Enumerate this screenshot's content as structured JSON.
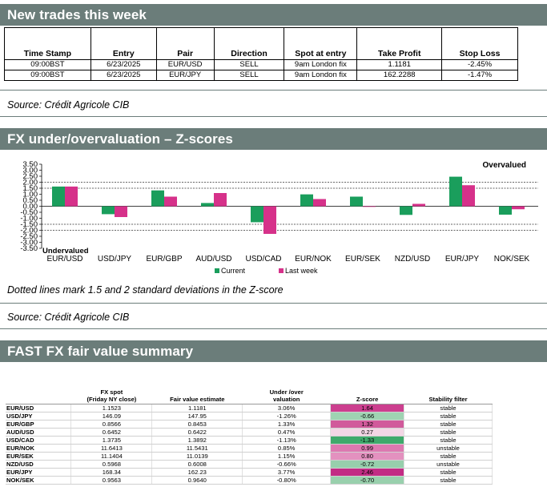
{
  "trades": {
    "title": "New trades this week",
    "columns": [
      "Time Stamp",
      "Entry",
      "Pair",
      "Direction",
      "Spot at entry",
      "Take Profit",
      "Stop Loss"
    ],
    "rows": [
      [
        "09:00BST",
        "6/23/2025",
        "EUR/USD",
        "SELL",
        "9am London fix",
        "1.1181",
        "-2.45%"
      ],
      [
        "09:00BST",
        "6/23/2025",
        "EUR/JPY",
        "SELL",
        "9am London fix",
        "162.2288",
        "-1.47%"
      ]
    ],
    "source": "Source: Crédit Agricole CIB"
  },
  "zscores": {
    "title": "FX under/overvaluation – Z-scores",
    "note": "Dotted lines mark 1.5 and 2 standard deviations in the Z-score",
    "source": "Source: Crédit Agricole CIB"
  },
  "chart_data": {
    "type": "bar",
    "categories": [
      "EUR/USD",
      "USD/JPY",
      "EUR/GBP",
      "AUD/USD",
      "USD/CAD",
      "EUR/NOK",
      "EUR/SEK",
      "NZD/USD",
      "EUR/JPY",
      "NOK/SEK"
    ],
    "series": [
      {
        "name": "Current",
        "color": "#1a9e5c",
        "values": [
          1.64,
          -0.66,
          1.32,
          0.27,
          -1.33,
          0.99,
          0.8,
          -0.72,
          2.46,
          -0.7
        ]
      },
      {
        "name": "Last week",
        "color": "#d6318a",
        "values": [
          1.64,
          -0.9,
          0.8,
          1.1,
          -2.3,
          0.6,
          -0.05,
          0.2,
          1.75,
          -0.25
        ]
      }
    ],
    "ylim": [
      -3.5,
      3.5
    ],
    "yticks": [
      "3.50",
      "3.00",
      "2.50",
      "2.00",
      "1.50",
      "1.00",
      "0.50",
      "0.00",
      "-0.50",
      "-1.00",
      "-1.50",
      "-2.00",
      "-2.50",
      "-3.00",
      "-3.50"
    ],
    "reference_lines": [
      2,
      1.5,
      -1.5,
      -2
    ],
    "annotations": {
      "top_right": "Overvalued",
      "bottom_left": "Undervalued"
    },
    "legend_placement": "bottom-center"
  },
  "fairvalue": {
    "title": "FAST FX fair value summary",
    "headers": [
      "",
      "FX spot (Friday NY close)",
      "Fair value estimate",
      "Under /over valuation",
      "Z-score",
      "Stability filter"
    ],
    "header_lines": [
      [
        ""
      ],
      [
        "FX spot",
        "(Friday NY close)"
      ],
      [
        "Fair value estimate"
      ],
      [
        "Under /over",
        "valuation"
      ],
      [
        "Z-score"
      ],
      [
        "Stability filter"
      ]
    ],
    "rows": [
      {
        "pair": "EUR/USD",
        "spot": "1.1523",
        "fv": "1.1181",
        "val": "3.06%",
        "z": "1.64",
        "stab": "stable",
        "zcolor": "#cc3f8f"
      },
      {
        "pair": "USD/JPY",
        "spot": "146.09",
        "fv": "147.95",
        "val": "-1.26%",
        "z": "-0.66",
        "stab": "stable",
        "zcolor": "#9fd3b2"
      },
      {
        "pair": "EUR/GBP",
        "spot": "0.8566",
        "fv": "0.8453",
        "val": "1.33%",
        "z": "1.32",
        "stab": "stable",
        "zcolor": "#d15a9b"
      },
      {
        "pair": "AUD/USD",
        "spot": "0.6452",
        "fv": "0.6422",
        "val": "0.47%",
        "z": "0.27",
        "stab": "stable",
        "zcolor": "#f3d6e5"
      },
      {
        "pair": "USD/CAD",
        "spot": "1.3735",
        "fv": "1.3892",
        "val": "-1.13%",
        "z": "-1.33",
        "stab": "stable",
        "zcolor": "#3fa96b"
      },
      {
        "pair": "EUR/NOK",
        "spot": "11.6413",
        "fv": "11.5431",
        "val": "0.85%",
        "z": "0.99",
        "stab": "unstable",
        "zcolor": "#dd78b0"
      },
      {
        "pair": "EUR/SEK",
        "spot": "11.1404",
        "fv": "11.0139",
        "val": "1.15%",
        "z": "0.80",
        "stab": "stable",
        "zcolor": "#e391bf"
      },
      {
        "pair": "NZD/USD",
        "spot": "0.5968",
        "fv": "0.6008",
        "val": "-0.66%",
        "z": "-0.72",
        "stab": "unstable",
        "zcolor": "#97cfac"
      },
      {
        "pair": "EUR/JPY",
        "spot": "168.34",
        "fv": "162.23",
        "val": "3.77%",
        "z": "2.46",
        "stab": "stable",
        "zcolor": "#c22c84"
      },
      {
        "pair": "NOK/SEK",
        "spot": "0.9563",
        "fv": "0.9640",
        "val": "-0.80%",
        "z": "-0.70",
        "stab": "stable",
        "zcolor": "#99d0ad"
      }
    ]
  }
}
